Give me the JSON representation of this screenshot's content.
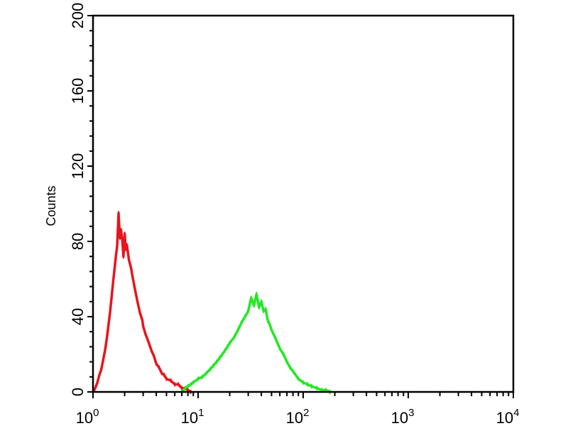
{
  "chart_data": {
    "type": "line",
    "title": "",
    "xlabel": "",
    "ylabel": "Counts",
    "x_scale": "log",
    "xlim": [
      1,
      10000
    ],
    "ylim": [
      0,
      200
    ],
    "grid": false,
    "legend": "none",
    "x_ticks": [
      {
        "base": "10",
        "exp": "0",
        "value": 1
      },
      {
        "base": "10",
        "exp": "1",
        "value": 10
      },
      {
        "base": "10",
        "exp": "2",
        "value": 100
      },
      {
        "base": "10",
        "exp": "3",
        "value": 1000
      },
      {
        "base": "10",
        "exp": "4",
        "value": 10000
      }
    ],
    "y_ticks": [
      "0",
      "40",
      "80",
      "120",
      "160",
      "200"
    ],
    "series": [
      {
        "color": "#e8141c",
        "x": [
          1.0,
          1.05,
          1.1,
          1.15,
          1.2,
          1.25,
          1.3,
          1.35,
          1.4,
          1.45,
          1.5,
          1.55,
          1.6,
          1.65,
          1.7,
          1.75,
          1.8,
          1.85,
          1.9,
          1.95,
          2.0,
          2.05,
          2.1,
          2.2,
          2.3,
          2.4,
          2.5,
          2.65,
          2.8,
          2.95,
          3.0,
          3.15,
          3.3,
          3.45,
          3.6,
          3.8,
          4.0,
          4.25,
          4.5,
          4.75,
          5.0,
          5.5,
          6.0,
          6.5,
          7.0,
          7.5,
          8.0,
          8.5
        ],
        "y": [
          0,
          2,
          5,
          9,
          12,
          17,
          22,
          28,
          35,
          42,
          50,
          58,
          65,
          72,
          78,
          95,
          82,
          86,
          80,
          72,
          84,
          76,
          78,
          70,
          66,
          60,
          55,
          48,
          42,
          38,
          35,
          31,
          28,
          25,
          22,
          19,
          15,
          13,
          10,
          9,
          7,
          6,
          4,
          4,
          2,
          2,
          1,
          0
        ]
      },
      {
        "color": "#22e822",
        "x": [
          7,
          7.5,
          8,
          8.5,
          9,
          10,
          11,
          12,
          13,
          14,
          15,
          16,
          17,
          18,
          19,
          20,
          22,
          24,
          26,
          28,
          30,
          32,
          34,
          36,
          38,
          40,
          42,
          44,
          46,
          48,
          50,
          55,
          60,
          65,
          70,
          75,
          80,
          90,
          100,
          110,
          120,
          135,
          150,
          165,
          180
        ],
        "y": [
          0,
          2,
          3,
          4,
          5,
          7,
          8,
          10,
          12,
          14,
          16,
          18,
          20,
          22,
          24,
          26,
          29,
          33,
          37,
          40,
          43,
          50,
          46,
          52,
          45,
          48,
          43,
          44,
          38,
          36,
          33,
          28,
          23,
          20,
          16,
          13,
          11,
          7,
          5,
          4,
          3,
          2,
          1,
          1,
          0
        ]
      }
    ]
  }
}
